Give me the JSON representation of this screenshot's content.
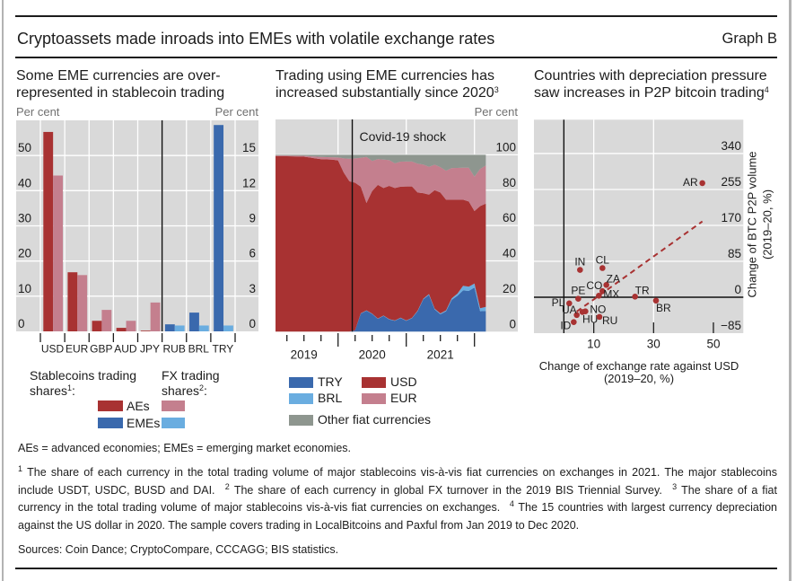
{
  "header": {
    "title": "Cryptoassets made inroads into EMEs with volatile exchange rates",
    "graph_label": "Graph B"
  },
  "panels": [
    {
      "title_lines": [
        "Some EME currencies are over-",
        "represented in stablecoin trading"
      ],
      "footnote_ref": ""
    },
    {
      "title_lines": [
        "Trading using EME currencies has",
        "increased substantially since 2020"
      ],
      "footnote_ref": "3"
    },
    {
      "title_lines": [
        "Countries with depreciation pressure",
        "saw increases in P2P bitcoin trading"
      ],
      "footnote_ref": "4"
    }
  ],
  "chart_data": [
    {
      "type": "bar",
      "title": "Some EME currencies are over-represented in stablecoin trading",
      "left_axis": {
        "label": "Per cent",
        "range": [
          0,
          60
        ],
        "ticks": [
          0,
          10,
          20,
          30,
          40,
          50
        ],
        "applies_to": "AEs"
      },
      "right_axis": {
        "label": "Per cent",
        "range": [
          0,
          18
        ],
        "ticks": [
          0,
          3,
          6,
          9,
          12,
          15
        ],
        "applies_to": "EMEs"
      },
      "categories": [
        "USD",
        "EUR",
        "GBP",
        "AUD",
        "JPY",
        "RUB",
        "BRL",
        "TRY"
      ],
      "category_group": [
        "AEs",
        "AEs",
        "AEs",
        "AEs",
        "AEs",
        "EMEs",
        "EMEs",
        "EMEs"
      ],
      "series": [
        {
          "key": "stablecoin",
          "name": "Stablecoins trading shares",
          "footnote": "1",
          "values": [
            56.7,
            16.8,
            3.0,
            1.0,
            0.2,
            0.6,
            1.6,
            17.6
          ],
          "colors": {
            "AEs": "#A83232",
            "EMEs": "#3A69AD"
          }
        },
        {
          "key": "fx",
          "name": "FX trading shares",
          "footnote": "2",
          "values": [
            44.3,
            16.0,
            6.1,
            3.0,
            8.2,
            0.5,
            0.5,
            0.5
          ],
          "colors": {
            "AEs": "#C47F8E",
            "EMEs": "#6AADE0"
          }
        }
      ],
      "grid": true,
      "legend": {
        "placement": "bottom",
        "headers": {
          "stablecoin": [
            "Stablecoins trading",
            "shares"
          ],
          "fx": [
            "FX trading",
            "shares"
          ]
        },
        "label_suffix": ":",
        "groups": [
          "AEs",
          "EMEs"
        ]
      }
    },
    {
      "type": "area",
      "stacked": true,
      "title": "Trading using EME currencies has increased substantially since 2020",
      "x": [
        "2019-01",
        "2019-02",
        "2019-03",
        "2019-04",
        "2019-05",
        "2019-06",
        "2019-07",
        "2019-08",
        "2019-09",
        "2019-10",
        "2019-11",
        "2019-12",
        "2020-01",
        "2020-02",
        "2020-03",
        "2020-04",
        "2020-05",
        "2020-06",
        "2020-07",
        "2020-08",
        "2020-09",
        "2020-10",
        "2020-11",
        "2020-12",
        "2021-01",
        "2021-02",
        "2021-03",
        "2021-04",
        "2021-05",
        "2021-06",
        "2021-07",
        "2021-08",
        "2021-09",
        "2021-10",
        "2021-11",
        "2021-12",
        "2022-01",
        "2022-02"
      ],
      "x_tick_labels": [
        "2019",
        "2020",
        "2021"
      ],
      "y_axis": {
        "label": "Per cent",
        "range": [
          0,
          120
        ],
        "ticks": [
          0,
          20,
          40,
          60,
          80,
          100
        ],
        "side": "right"
      },
      "annotation": {
        "label": "Covid-19 shock",
        "x": "2020-03"
      },
      "grid": true,
      "series": [
        {
          "name": "TRY",
          "color": "#3A69AD",
          "values": [
            0,
            0,
            0,
            0,
            0,
            0,
            0,
            0,
            0,
            0,
            0,
            0,
            0,
            0,
            0.8,
            10.2,
            11.8,
            10.0,
            7.2,
            8.9,
            6.9,
            6.1,
            7.7,
            6.1,
            7.6,
            11.5,
            18.3,
            20.8,
            12.6,
            9.8,
            11.5,
            18.0,
            20.3,
            23.3,
            23.0,
            25.0,
            11.5,
            11.7
          ]
        },
        {
          "name": "BRL",
          "color": "#6AADE0",
          "values": [
            0,
            0,
            0,
            0,
            0,
            0,
            0,
            0,
            0,
            0,
            0,
            0,
            0,
            0,
            0,
            0.2,
            0.2,
            0.2,
            0.2,
            0.2,
            0.2,
            0.2,
            0.2,
            0.2,
            0.2,
            0.3,
            0.3,
            0.4,
            0.4,
            0.5,
            0.5,
            0.8,
            1.2,
            2.6,
            2.4,
            2.2,
            1.7,
            2.3
          ]
        },
        {
          "name": "USD",
          "color": "#A83232",
          "values": [
            99.2,
            99.2,
            99.2,
            99.1,
            99.0,
            98.9,
            98.5,
            98.0,
            97.5,
            97.4,
            97.3,
            96.8,
            90.0,
            85.0,
            83.4,
            71.6,
            60.8,
            69.3,
            75.6,
            72.1,
            75.3,
            74.9,
            74.1,
            75.8,
            74.3,
            66.9,
            59.7,
            56.3,
            67.0,
            68.4,
            62.6,
            55.8,
            53.1,
            48.7,
            48.2,
            41.0,
            57.8,
            58.4
          ]
        },
        {
          "name": "EUR",
          "color": "#C47F8E",
          "values": [
            0.4,
            0.4,
            0.4,
            0.4,
            0.5,
            0.5,
            0.7,
            1.0,
            1.3,
            1.3,
            1.3,
            1.7,
            8.0,
            12.8,
            13.8,
            16.3,
            26.0,
            17.0,
            14.5,
            16.1,
            14.6,
            14.0,
            14.1,
            14.1,
            14.1,
            16.3,
            16.2,
            15.7,
            14.4,
            14.3,
            16.4,
            17.9,
            18.0,
            18.1,
            19.1,
            19.4,
            21.0,
            21.6
          ]
        },
        {
          "name": "Other fiat currencies",
          "color": "#8E968F",
          "values": [
            0.4,
            0.4,
            0.4,
            0.5,
            0.5,
            0.6,
            0.8,
            1.0,
            1.2,
            1.3,
            1.4,
            1.5,
            2.0,
            2.2,
            2.0,
            1.7,
            1.2,
            3.5,
            2.5,
            2.7,
            3.0,
            4.8,
            3.9,
            3.8,
            3.8,
            5.0,
            5.5,
            6.8,
            5.6,
            7.0,
            9.0,
            7.5,
            7.4,
            7.3,
            7.3,
            12.4,
            8.0,
            6.0
          ]
        }
      ],
      "legend": {
        "placement": "bottom"
      }
    },
    {
      "type": "scatter",
      "title": "Countries with depreciation pressure saw increases in P2P bitcoin trading",
      "xlabel_lines": [
        "Change of exchange rate against USD",
        "(2019–20, %)"
      ],
      "ylabel_lines": [
        "Change of BTC P2P volume",
        "(2019–20, %)"
      ],
      "xlim": [
        -10,
        60
      ],
      "ylim": [
        -85,
        420
      ],
      "xticks": [
        10,
        30,
        50
      ],
      "xtick_labels": [
        "10",
        "30",
        "50"
      ],
      "yticks": [
        -85,
        0,
        85,
        170,
        255,
        340
      ],
      "ytick_labels": [
        "−85",
        "0",
        "85",
        "170",
        "255",
        "340"
      ],
      "x_gridlines": [
        10,
        30
      ],
      "grid": true,
      "point_color": "#A83232",
      "points": [
        {
          "label": "AR",
          "x": 46.3,
          "y": 270,
          "label_pos": "left"
        },
        {
          "label": "IN",
          "x": 5.4,
          "y": 64.7,
          "label_pos": "above"
        },
        {
          "label": "CL",
          "x": 12.9,
          "y": 69,
          "label_pos": "above"
        },
        {
          "label": "ZA",
          "x": 14.2,
          "y": 29.1,
          "label_pos": "above-right"
        },
        {
          "label": "CO",
          "x": 12.9,
          "y": 14.5,
          "label_pos": "above-left"
        },
        {
          "label": "MX",
          "x": 11.7,
          "y": 3.6,
          "label_pos": "right"
        },
        {
          "label": "PE",
          "x": 4.8,
          "y": -3.6,
          "label_pos": "above"
        },
        {
          "label": "TR",
          "x": 23.8,
          "y": 1.5,
          "label_pos": "above-right"
        },
        {
          "label": "BR",
          "x": 30.8,
          "y": -8,
          "label_pos": "below-right"
        },
        {
          "label": "PL",
          "x": 1.8,
          "y": -14.5,
          "label_pos": "left"
        },
        {
          "label": "NO",
          "x": 7.2,
          "y": -33.4,
          "label_pos": "right"
        },
        {
          "label": "HU",
          "x": 6.2,
          "y": -34.9,
          "label_pos": "below-right"
        },
        {
          "label": "UA",
          "x": 4.3,
          "y": -42.1,
          "label_pos": "above-left"
        },
        {
          "label": "RU",
          "x": 11.9,
          "y": -46.5,
          "label_pos": "right-below"
        },
        {
          "label": "ID",
          "x": 3.3,
          "y": -58.8,
          "label_pos": "left-below"
        }
      ],
      "trendline": {
        "style": "dashed",
        "color": "#A83232",
        "x": [
          4.3,
          46.3
        ],
        "y": [
          -34,
          179.4
        ]
      }
    }
  ],
  "notes": {
    "abbreviations": "AEs = advanced economies; EMEs = emerging market economies.",
    "footnotes": [
      {
        "num": "1",
        "text": "The share of each currency in the total trading volume of major stablecoins vis-à-vis fiat currencies on exchanges in 2021. The major stablecoins include USDT, USDC, BUSD and DAI."
      },
      {
        "num": "2",
        "text": "The share of each currency in global FX turnover in the 2019 BIS Triennial Survey."
      },
      {
        "num": "3",
        "text": "The share of a fiat currency in the total trading volume of major stablecoins vis-à-vis fiat currencies on exchanges."
      },
      {
        "num": "4",
        "text": "The 15 countries with largest currency depreciation against the US dollar in 2020. The sample covers trading in LocalBitcoins and Paxful from Jan 2019 to Dec 2020."
      }
    ],
    "sources": "Sources: Coin Dance; CryptoCompare, CCCAGG; BIS statistics."
  }
}
